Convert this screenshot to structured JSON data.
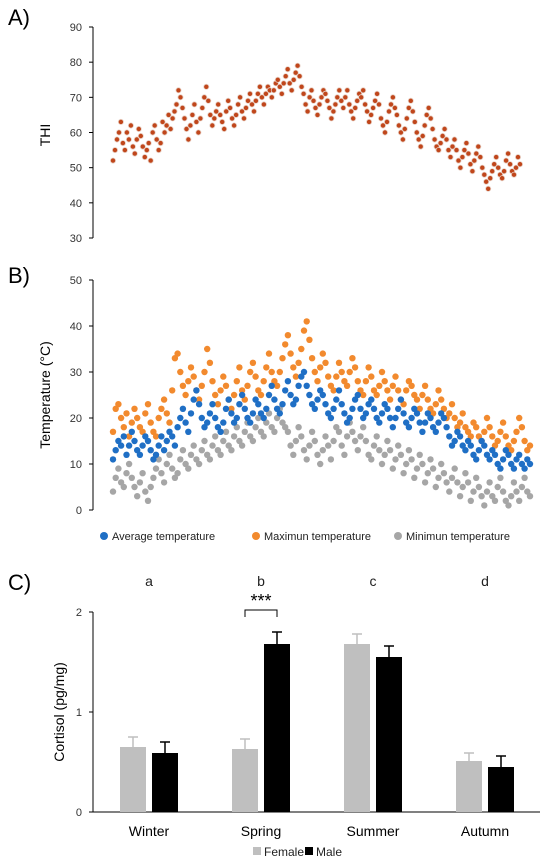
{
  "panels": {
    "a_label": "A)",
    "b_label": "B)",
    "c_label": "C)"
  },
  "chart_data": [
    {
      "type": "scatter",
      "panel": "A)",
      "ylabel": "THI",
      "xlabel": "",
      "ylim": [
        30,
        90
      ],
      "yticks": [
        30,
        40,
        50,
        60,
        70,
        80,
        90
      ],
      "x_axis_visible": false,
      "color": "#c0461b",
      "series": [
        {
          "values": [
            52,
            55,
            58,
            60,
            63,
            57,
            55,
            60,
            58,
            62,
            56,
            54,
            58,
            61,
            59,
            56,
            53,
            55,
            57,
            52,
            60,
            62,
            58,
            55,
            57,
            63,
            60,
            62,
            65,
            61,
            64,
            66,
            68,
            72,
            70,
            67,
            64,
            61,
            58,
            62,
            65,
            68,
            63,
            60,
            64,
            67,
            70,
            73,
            69,
            65,
            62,
            64,
            66,
            68,
            65,
            63,
            61,
            66,
            69,
            67,
            64,
            62,
            65,
            68,
            70,
            66,
            64,
            67,
            69,
            71,
            68,
            66,
            69,
            71,
            73,
            70,
            68,
            71,
            73,
            72,
            70,
            72,
            74,
            75,
            73,
            71,
            74,
            76,
            78,
            74,
            72,
            75,
            77,
            79,
            76,
            73,
            71,
            68,
            66,
            70,
            72,
            69,
            67,
            65,
            68,
            70,
            72,
            71,
            69,
            67,
            64,
            66,
            68,
            70,
            72,
            69,
            67,
            70,
            72,
            68,
            66,
            64,
            67,
            69,
            71,
            70,
            72,
            68,
            66,
            63,
            65,
            67,
            69,
            71,
            68,
            64,
            62,
            60,
            63,
            66,
            68,
            70,
            67,
            65,
            62,
            60,
            58,
            61,
            64,
            67,
            69,
            66,
            63,
            60,
            58,
            56,
            59,
            62,
            65,
            67,
            64,
            61,
            58,
            56,
            55,
            57,
            59,
            61,
            58,
            55,
            53,
            56,
            58,
            55,
            52,
            50,
            53,
            55,
            57,
            54,
            51,
            49,
            52,
            54,
            56,
            53,
            50,
            48,
            46,
            44,
            47,
            49,
            51,
            53,
            50,
            48,
            47,
            49,
            52,
            54,
            51,
            49,
            48,
            50,
            53,
            51
          ]
        }
      ]
    },
    {
      "type": "scatter",
      "panel": "B)",
      "ylabel": "Temperature (°C)",
      "xlabel": "",
      "ylim": [
        0,
        50
      ],
      "yticks": [
        0,
        10,
        20,
        30,
        40,
        50
      ],
      "x_axis_visible": false,
      "legend_position": "bottom",
      "series": [
        {
          "name": "Average temperature",
          "color": "#1f6fc5",
          "values": [
            11,
            13,
            15,
            14,
            16,
            12,
            14,
            17,
            15,
            13,
            12,
            14,
            16,
            15,
            13,
            11,
            12,
            14,
            16,
            13,
            15,
            17,
            16,
            14,
            18,
            20,
            22,
            19,
            17,
            21,
            24,
            26,
            23,
            20,
            18,
            19,
            21,
            23,
            20,
            18,
            17,
            19,
            22,
            24,
            21,
            19,
            20,
            23,
            25,
            22,
            20,
            19,
            21,
            24,
            23,
            21,
            20,
            22,
            25,
            27,
            24,
            22,
            21,
            23,
            26,
            28,
            25,
            23,
            24,
            27,
            29,
            30,
            27,
            25,
            23,
            22,
            24,
            26,
            25,
            23,
            21,
            20,
            22,
            24,
            26,
            23,
            21,
            19,
            20,
            22,
            24,
            25,
            22,
            20,
            21,
            23,
            24,
            22,
            20,
            19,
            21,
            23,
            22,
            20,
            18,
            20,
            22,
            24,
            21,
            19,
            18,
            20,
            22,
            21,
            19,
            17,
            19,
            21,
            20,
            18,
            17,
            19,
            21,
            20,
            18,
            16,
            14,
            15,
            17,
            16,
            14,
            13,
            15,
            14,
            12,
            11,
            13,
            15,
            14,
            12,
            11,
            13,
            12,
            10,
            9,
            11,
            13,
            12,
            10,
            9,
            11,
            12,
            10,
            9,
            11,
            10
          ]
        },
        {
          "name": "Maximun temperature",
          "color": "#f28a2e",
          "values": [
            17,
            22,
            23,
            20,
            18,
            21,
            16,
            19,
            22,
            20,
            18,
            17,
            21,
            23,
            19,
            17,
            16,
            20,
            22,
            24,
            21,
            19,
            26,
            33,
            34,
            30,
            27,
            25,
            28,
            31,
            29,
            26,
            24,
            27,
            30,
            35,
            32,
            28,
            25,
            23,
            26,
            29,
            27,
            24,
            22,
            25,
            28,
            31,
            26,
            24,
            27,
            30,
            32,
            29,
            26,
            25,
            28,
            31,
            34,
            30,
            28,
            27,
            30,
            33,
            36,
            38,
            34,
            31,
            29,
            32,
            35,
            39,
            41,
            37,
            33,
            30,
            28,
            31,
            34,
            32,
            29,
            27,
            26,
            29,
            32,
            30,
            28,
            27,
            30,
            33,
            31,
            28,
            26,
            25,
            28,
            31,
            29,
            26,
            25,
            27,
            30,
            28,
            26,
            24,
            27,
            29,
            26,
            24,
            23,
            26,
            28,
            27,
            25,
            24,
            22,
            25,
            27,
            24,
            22,
            21,
            23,
            26,
            24,
            22,
            20,
            21,
            23,
            20,
            18,
            19,
            21,
            18,
            17,
            16,
            19,
            18,
            16,
            15,
            17,
            20,
            18,
            16,
            14,
            15,
            17,
            19,
            16,
            14,
            13,
            15,
            17,
            20,
            18,
            15,
            13,
            14
          ]
        },
        {
          "name": "Minimun temperature",
          "color": "#a6a6a6",
          "values": [
            4,
            7,
            9,
            6,
            5,
            8,
            10,
            7,
            5,
            3,
            6,
            8,
            4,
            2,
            5,
            7,
            9,
            11,
            8,
            6,
            10,
            12,
            9,
            7,
            8,
            11,
            13,
            10,
            9,
            12,
            14,
            11,
            10,
            13,
            15,
            12,
            11,
            14,
            16,
            13,
            12,
            15,
            17,
            14,
            13,
            16,
            18,
            15,
            14,
            17,
            19,
            16,
            15,
            18,
            20,
            17,
            16,
            19,
            21,
            18,
            17,
            20,
            22,
            19,
            18,
            17,
            14,
            12,
            15,
            18,
            16,
            13,
            11,
            14,
            17,
            15,
            12,
            10,
            13,
            16,
            14,
            11,
            15,
            18,
            17,
            14,
            12,
            16,
            19,
            17,
            15,
            13,
            16,
            18,
            15,
            12,
            11,
            14,
            16,
            13,
            10,
            12,
            15,
            13,
            9,
            11,
            14,
            12,
            8,
            10,
            13,
            11,
            7,
            9,
            12,
            10,
            6,
            8,
            11,
            9,
            5,
            7,
            10,
            8,
            6,
            4,
            7,
            9,
            6,
            3,
            5,
            8,
            6,
            2,
            4,
            7,
            5,
            3,
            1,
            4,
            6,
            3,
            2,
            5,
            7,
            4,
            2,
            1,
            3,
            6,
            4,
            2,
            5,
            7,
            4,
            3
          ]
        }
      ]
    },
    {
      "type": "bar",
      "panel": "C)",
      "ylabel": "Cortisol (pg/mg)",
      "xlabel": "",
      "ylim": [
        0,
        2
      ],
      "yticks": [
        0,
        1,
        2
      ],
      "categories": [
        "Winter",
        "Spring",
        "Summer",
        "Autumn"
      ],
      "group_letters": [
        "a",
        "b",
        "c",
        "d"
      ],
      "significance": {
        "category": "Spring",
        "label": "***"
      },
      "legend_position": "bottom",
      "series": [
        {
          "name": "Female",
          "color": "#bfbfbf",
          "values": [
            0.65,
            0.63,
            1.68,
            0.51
          ],
          "errors": [
            0.1,
            0.1,
            0.1,
            0.08
          ]
        },
        {
          "name": "Male",
          "color": "#000000",
          "values": [
            0.59,
            1.68,
            1.55,
            0.45
          ],
          "errors": [
            0.11,
            0.12,
            0.11,
            0.11
          ]
        }
      ]
    }
  ]
}
